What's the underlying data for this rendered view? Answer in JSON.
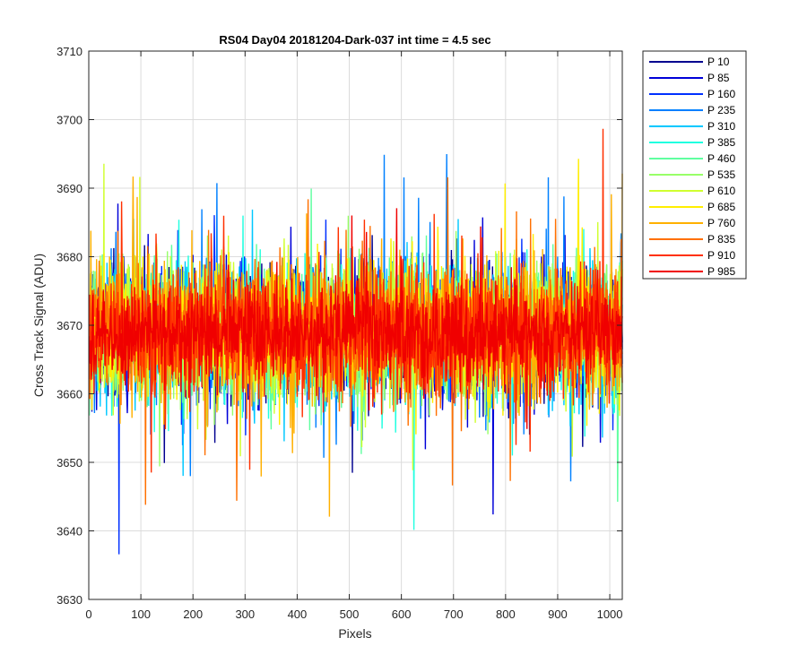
{
  "chart_data": {
    "type": "line",
    "title": "RS04 Day04 20181204-Dark-037 int time = 4.5 sec",
    "xlabel": "Pixels",
    "ylabel": "Cross Track Signal (ADU)",
    "xlim": [
      0,
      1024
    ],
    "ylim": [
      3630,
      3710
    ],
    "xticks": [
      0,
      100,
      200,
      300,
      400,
      500,
      600,
      700,
      800,
      900,
      1000
    ],
    "yticks": [
      3630,
      3640,
      3650,
      3660,
      3670,
      3680,
      3690,
      3700,
      3710
    ],
    "grid": true,
    "legend_position": "outside-top-right",
    "series_style": "noisy dark-frame signal, mean about 3669 ADU, roughly ±10 ADU spread",
    "series": [
      {
        "name": "P 10",
        "color": "#00008f",
        "mean": 3669,
        "spread": 8
      },
      {
        "name": "P 85",
        "color": "#0000d8",
        "mean": 3669,
        "spread": 8
      },
      {
        "name": "P 160",
        "color": "#0030ff",
        "mean": 3669,
        "spread": 8
      },
      {
        "name": "P 235",
        "color": "#0080ff",
        "mean": 3669,
        "spread": 8
      },
      {
        "name": "P 310",
        "color": "#00c8ff",
        "mean": 3669,
        "spread": 8
      },
      {
        "name": "P 385",
        "color": "#20ffe0",
        "mean": 3669,
        "spread": 8
      },
      {
        "name": "P 460",
        "color": "#60ffa0",
        "mean": 3669,
        "spread": 8
      },
      {
        "name": "P 535",
        "color": "#98ff68",
        "mean": 3669,
        "spread": 8
      },
      {
        "name": "P 610",
        "color": "#d0ff30",
        "mean": 3669,
        "spread": 8
      },
      {
        "name": "P 685",
        "color": "#ffee00",
        "mean": 3669,
        "spread": 8
      },
      {
        "name": "P 760",
        "color": "#ffb000",
        "mean": 3669,
        "spread": 8
      },
      {
        "name": "P 835",
        "color": "#ff7000",
        "mean": 3669,
        "spread": 8
      },
      {
        "name": "P 910",
        "color": "#ff3000",
        "mean": 3669,
        "spread": 8
      },
      {
        "name": "P 985",
        "color": "#f00000",
        "mean": 3669,
        "spread": 6
      }
    ]
  }
}
